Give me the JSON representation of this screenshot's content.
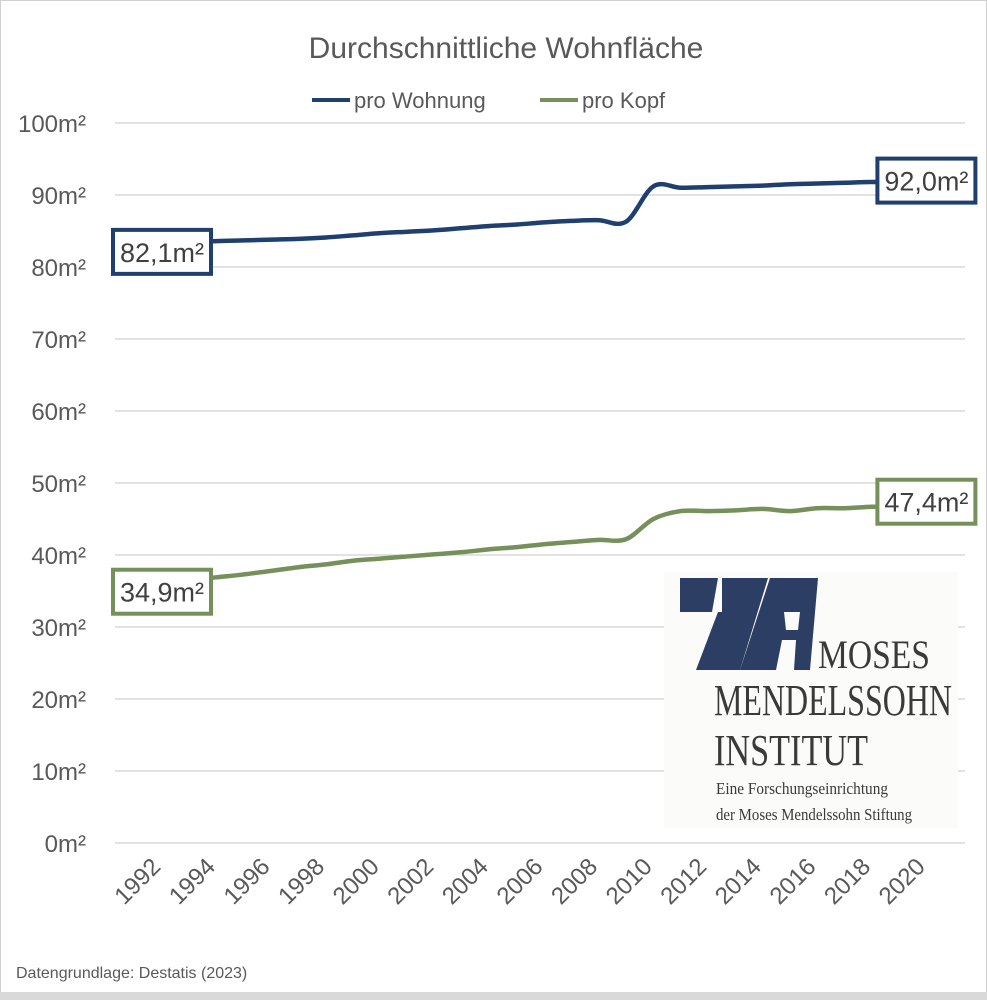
{
  "chart_data": {
    "type": "line",
    "title": "Durchschnittliche Wohnfläche",
    "xlabel": "",
    "ylabel": "",
    "x_tick_labels": [
      "1992",
      "1994",
      "1996",
      "1998",
      "2000",
      "2002",
      "2004",
      "2006",
      "2008",
      "2010",
      "2012",
      "2014",
      "2016",
      "2018",
      "2020"
    ],
    "y_tick_labels": [
      "0m²",
      "10m²",
      "20m²",
      "30m²",
      "40m²",
      "50m²",
      "60m²",
      "70m²",
      "80m²",
      "90m²",
      "100m²"
    ],
    "ylim": [
      0,
      100
    ],
    "grid": true,
    "legend_position": "top",
    "x": [
      1992,
      1993,
      1994,
      1995,
      1996,
      1997,
      1998,
      1999,
      2000,
      2001,
      2002,
      2003,
      2004,
      2005,
      2006,
      2007,
      2008,
      2009,
      2010,
      2011,
      2012,
      2013,
      2014,
      2015,
      2016,
      2017,
      2018,
      2019,
      2020
    ],
    "series": [
      {
        "name": "pro Wohnung",
        "color": "#1f3f6e",
        "values": [
          82.1,
          83.4,
          83.6,
          83.7,
          83.8,
          83.9,
          84.1,
          84.4,
          84.7,
          84.9,
          85.1,
          85.4,
          85.7,
          85.9,
          86.2,
          86.4,
          86.5,
          86.3,
          91.2,
          91.0,
          91.1,
          91.2,
          91.3,
          91.5,
          91.6,
          91.7,
          91.8,
          91.8,
          92.0
        ],
        "start_label": "82,1m²",
        "end_label": "92,0m²"
      },
      {
        "name": "pro Kopf",
        "color": "#76905c",
        "values": [
          34.9,
          36.5,
          36.9,
          37.3,
          37.8,
          38.3,
          38.7,
          39.2,
          39.5,
          39.8,
          40.1,
          40.4,
          40.8,
          41.1,
          41.5,
          41.8,
          42.1,
          42.2,
          45.0,
          46.1,
          46.1,
          46.2,
          46.4,
          46.1,
          46.5,
          46.5,
          46.7,
          46.7,
          47.4
        ],
        "start_label": "34,9m²",
        "end_label": "47,4m²"
      }
    ]
  },
  "source": "Datengrundlage: Destatis (2023)",
  "logo": {
    "line1": "MOSES",
    "line2": "MENDELSSOHN",
    "line3": "INSTITUT",
    "sub1": "Eine Forschungseinrichtung",
    "sub2": "der Moses Mendelssohn Stiftung",
    "color": "#2c3e63"
  }
}
